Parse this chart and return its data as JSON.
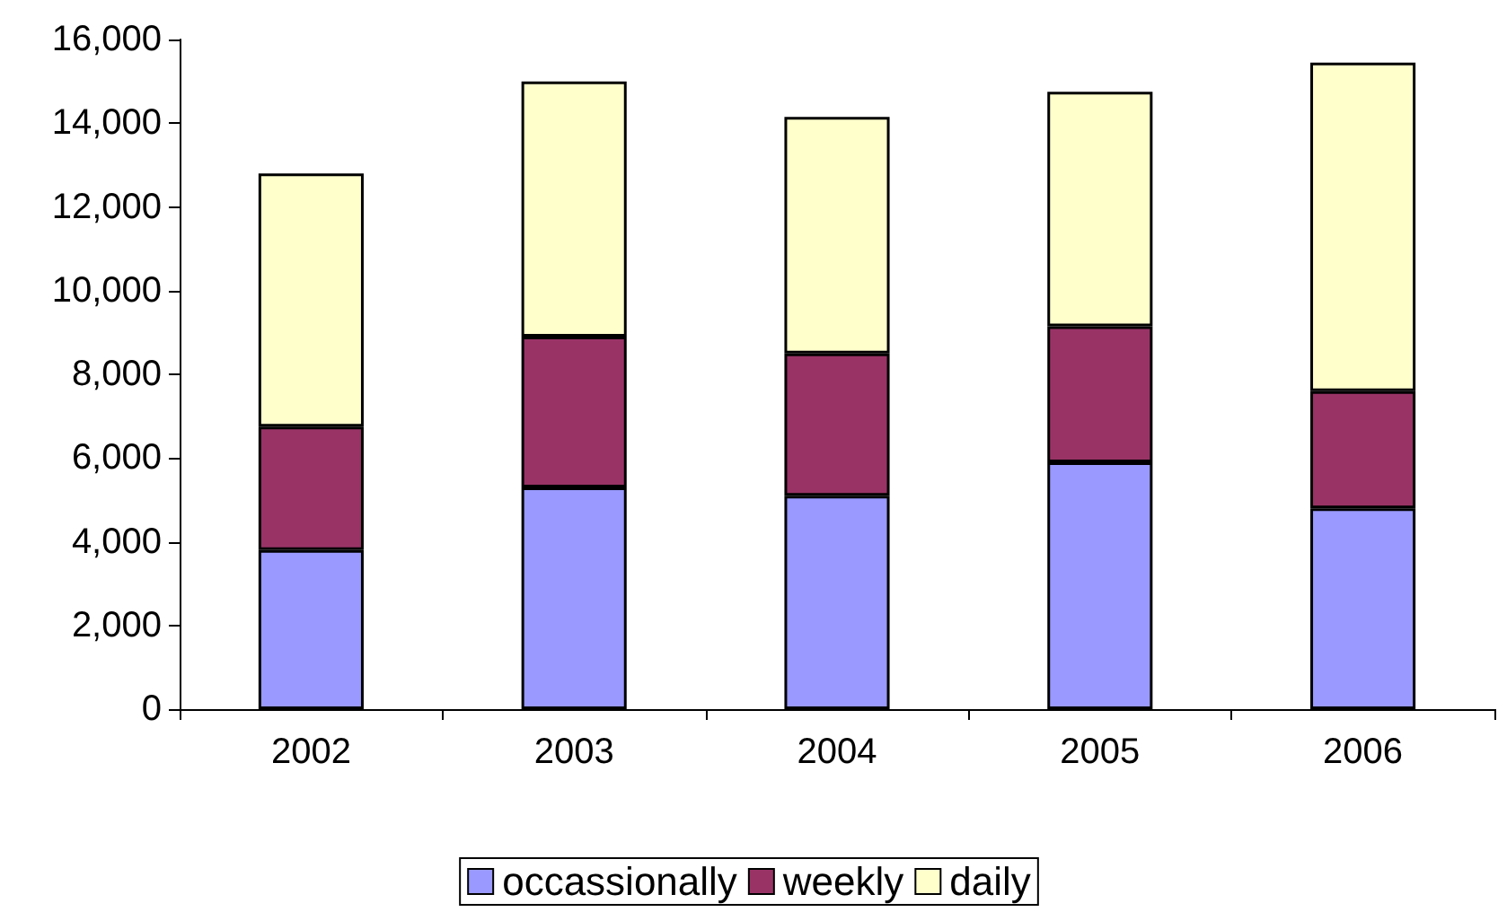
{
  "chart_data": {
    "type": "bar",
    "stacked": true,
    "categories": [
      "2002",
      "2003",
      "2004",
      "2005",
      "2006"
    ],
    "series": [
      {
        "name": "occassionally",
        "color": "#9999ff",
        "values": [
          3800,
          5300,
          5100,
          5900,
          4800
        ]
      },
      {
        "name": "weekly",
        "color": "#993366",
        "values": [
          2950,
          3600,
          3400,
          3250,
          2800
        ]
      },
      {
        "name": "daily",
        "color": "#ffffcc",
        "values": [
          6050,
          6100,
          5650,
          5600,
          7850
        ]
      }
    ],
    "ylim": [
      0,
      16000
    ],
    "yticks": [
      {
        "value": 0,
        "label": "0"
      },
      {
        "value": 2000,
        "label": "2,000"
      },
      {
        "value": 4000,
        "label": "4,000"
      },
      {
        "value": 6000,
        "label": "6,000"
      },
      {
        "value": 8000,
        "label": "8,000"
      },
      {
        "value": 10000,
        "label": "10,000"
      },
      {
        "value": 12000,
        "label": "12,000"
      },
      {
        "value": 14000,
        "label": "14,000"
      },
      {
        "value": 16000,
        "label": "16,000"
      }
    ],
    "grid": false,
    "legend": "bottom"
  }
}
